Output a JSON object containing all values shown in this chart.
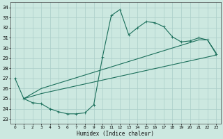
{
  "xlabel": "Humidex (Indice chaleur)",
  "bg_color": "#cce8e0",
  "line_color": "#1a6e5a",
  "grid_color": "#aacec8",
  "xlim": [
    -0.5,
    23.5
  ],
  "ylim": [
    22.5,
    34.5
  ],
  "xticks": [
    0,
    1,
    2,
    3,
    4,
    5,
    6,
    7,
    8,
    9,
    10,
    11,
    12,
    13,
    14,
    15,
    16,
    17,
    18,
    19,
    20,
    21,
    22,
    23
  ],
  "yticks": [
    23,
    24,
    25,
    26,
    27,
    28,
    29,
    30,
    31,
    32,
    33,
    34
  ],
  "line1_x": [
    0,
    1,
    2,
    3,
    4,
    5,
    6,
    7,
    8,
    9,
    10,
    11,
    12,
    13,
    14,
    15,
    16,
    17,
    18,
    19,
    20,
    21,
    22,
    23
  ],
  "line1_y": [
    27.0,
    25.0,
    24.6,
    24.5,
    24.0,
    23.7,
    23.5,
    23.5,
    23.6,
    24.4,
    29.1,
    33.2,
    33.8,
    31.3,
    32.0,
    32.6,
    32.5,
    32.1,
    31.1,
    30.6,
    30.7,
    31.0,
    30.8,
    29.4
  ],
  "line2_x": [
    1,
    3,
    23
  ],
  "line2_y": [
    25.0,
    25.5,
    29.3
  ],
  "line3_x": [
    1,
    3,
    21,
    22,
    23
  ],
  "line3_y": [
    25.0,
    26.0,
    30.8,
    30.8,
    29.5
  ]
}
